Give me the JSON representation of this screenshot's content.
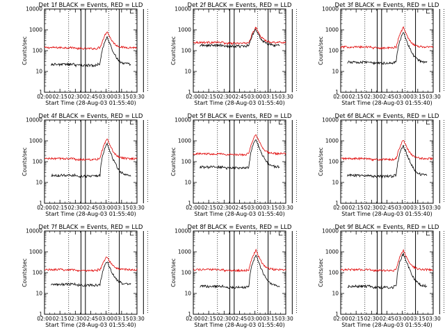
{
  "chart_data": {
    "type": "line",
    "yscale": "log",
    "ylim": [
      1,
      10000
    ],
    "xlim": [
      "02:00",
      "03:30"
    ],
    "x_tick_labels": [
      "02:00",
      "02:15",
      "02:30",
      "02:45",
      "03:00",
      "03:15",
      "03:30"
    ],
    "y_tick_labels": [
      "1",
      "10",
      "100",
      "1000",
      "10000"
    ],
    "ylabel": "Counts/sec",
    "xlabel": "Start Time (28-Aug-03 01:55:40)",
    "series_legend": {
      "black": "Events",
      "red": "LLD"
    },
    "colors": {
      "events": "#000000",
      "lld": "#e00000"
    },
    "vertical_markers": {
      "dotted_minutes": [
        23.5,
        62.5,
        100.5
      ],
      "solid_minutes": [
        35.5,
        39.8,
        72.8,
        96.3
      ]
    },
    "panels": [
      {
        "title": "Det 1f BLACK = Events, RED = LLD",
        "events_base": 22,
        "events_peak": 450,
        "lld_base": 140,
        "lld_peak": 850
      },
      {
        "title": "Det 2f BLACK = Events, RED = LLD",
        "events_base": 180,
        "events_peak": 1100,
        "lld_base": 250,
        "lld_peak": 1300
      },
      {
        "title": "Det 3f BLACK = Events, RED = LLD",
        "events_base": 28,
        "events_peak": 750,
        "lld_base": 150,
        "lld_peak": 1300
      },
      {
        "title": "Det 4f BLACK = Events, RED = LLD",
        "events_base": 22,
        "events_peak": 700,
        "lld_base": 140,
        "lld_peak": 1200
      },
      {
        "title": "Det 5f BLACK = Events, RED = LLD",
        "events_base": 55,
        "events_peak": 1200,
        "lld_base": 240,
        "lld_peak": 2000
      },
      {
        "title": "Det 6f BLACK = Events, RED = LLD",
        "events_base": 22,
        "events_peak": 600,
        "lld_base": 140,
        "lld_peak": 1100
      },
      {
        "title": "Det 7f BLACK = Events, RED = LLD",
        "events_base": 28,
        "events_peak": 350,
        "lld_base": 140,
        "lld_peak": 600
      },
      {
        "title": "Det 8f BLACK = Events, RED = LLD",
        "events_base": 22,
        "events_peak": 700,
        "lld_base": 140,
        "lld_peak": 1200
      },
      {
        "title": "Det 9f BLACK = Events, RED = LLD",
        "events_base": 22,
        "events_peak": 800,
        "lld_base": 140,
        "lld_peak": 1200
      }
    ]
  }
}
